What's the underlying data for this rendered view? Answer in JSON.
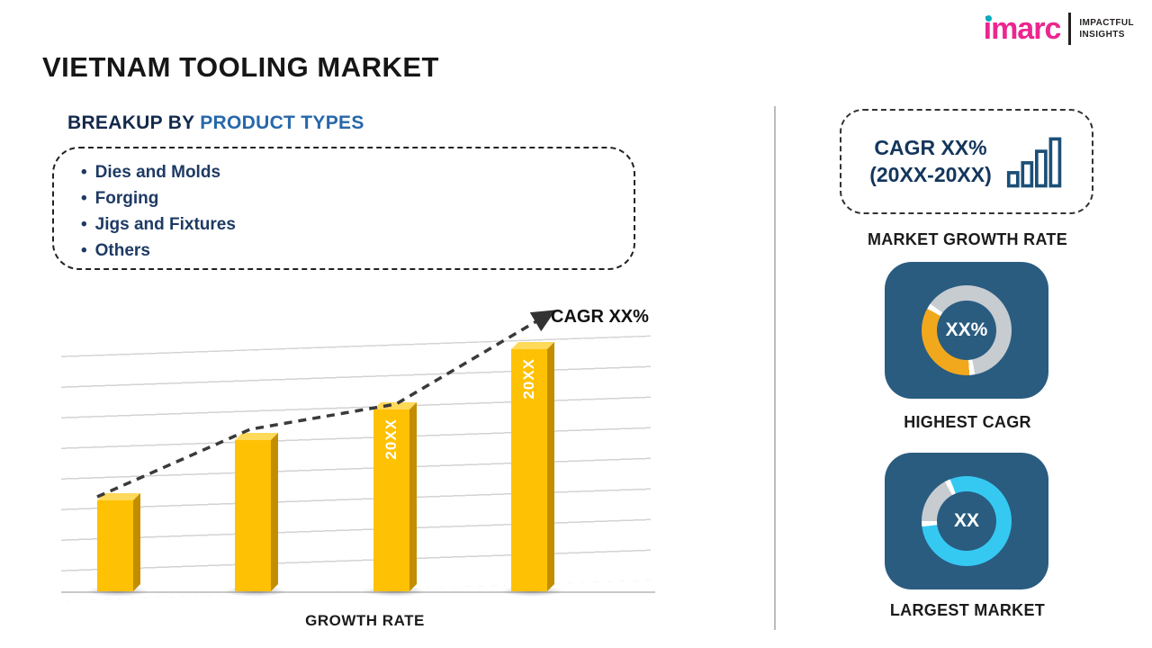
{
  "logo": {
    "brand": "imarc",
    "tagline_line1": "IMPACTFUL",
    "tagline_line2": "INSIGHTS",
    "brand_color": "#EC268F",
    "dot_color": "#00AEBD"
  },
  "title": "VIETNAM TOOLING MARKET",
  "breakup": {
    "heading_prefix": "BREAKUP BY ",
    "heading_accent": "PRODUCT TYPES",
    "items": [
      "Dies and Molds",
      "Forging",
      "Jigs and Fixtures",
      "Others"
    ]
  },
  "chart_data": {
    "type": "bar",
    "categories": [
      "",
      "",
      "20XX",
      "20XX"
    ],
    "values": [
      36,
      60,
      72,
      96
    ],
    "ylim": [
      0,
      100
    ],
    "title": "",
    "xlabel": "GROWTH RATE",
    "ylabel": "",
    "annotation": "CAGR XX%",
    "bar_color": "#FFC000",
    "trendline": "dashed ascending arrow",
    "grid": "horizontal",
    "legend": "none"
  },
  "sidebar": {
    "growth_box": {
      "line1": "CAGR XX%",
      "line2": "(20XX-20XX)"
    },
    "growth_caption": "MARKET GROWTH RATE",
    "highest_cagr": {
      "value": "XX%",
      "caption": "HIGHEST CAGR",
      "accent": "#F2A81D",
      "ring_base": "#C7CCD1",
      "tile": "#2A5C80"
    },
    "largest_market": {
      "value": "XX",
      "caption": "LARGEST MARKET",
      "accent": "#35C9F2",
      "ring_base": "#C7CCD1",
      "tile": "#2A5C80"
    }
  }
}
